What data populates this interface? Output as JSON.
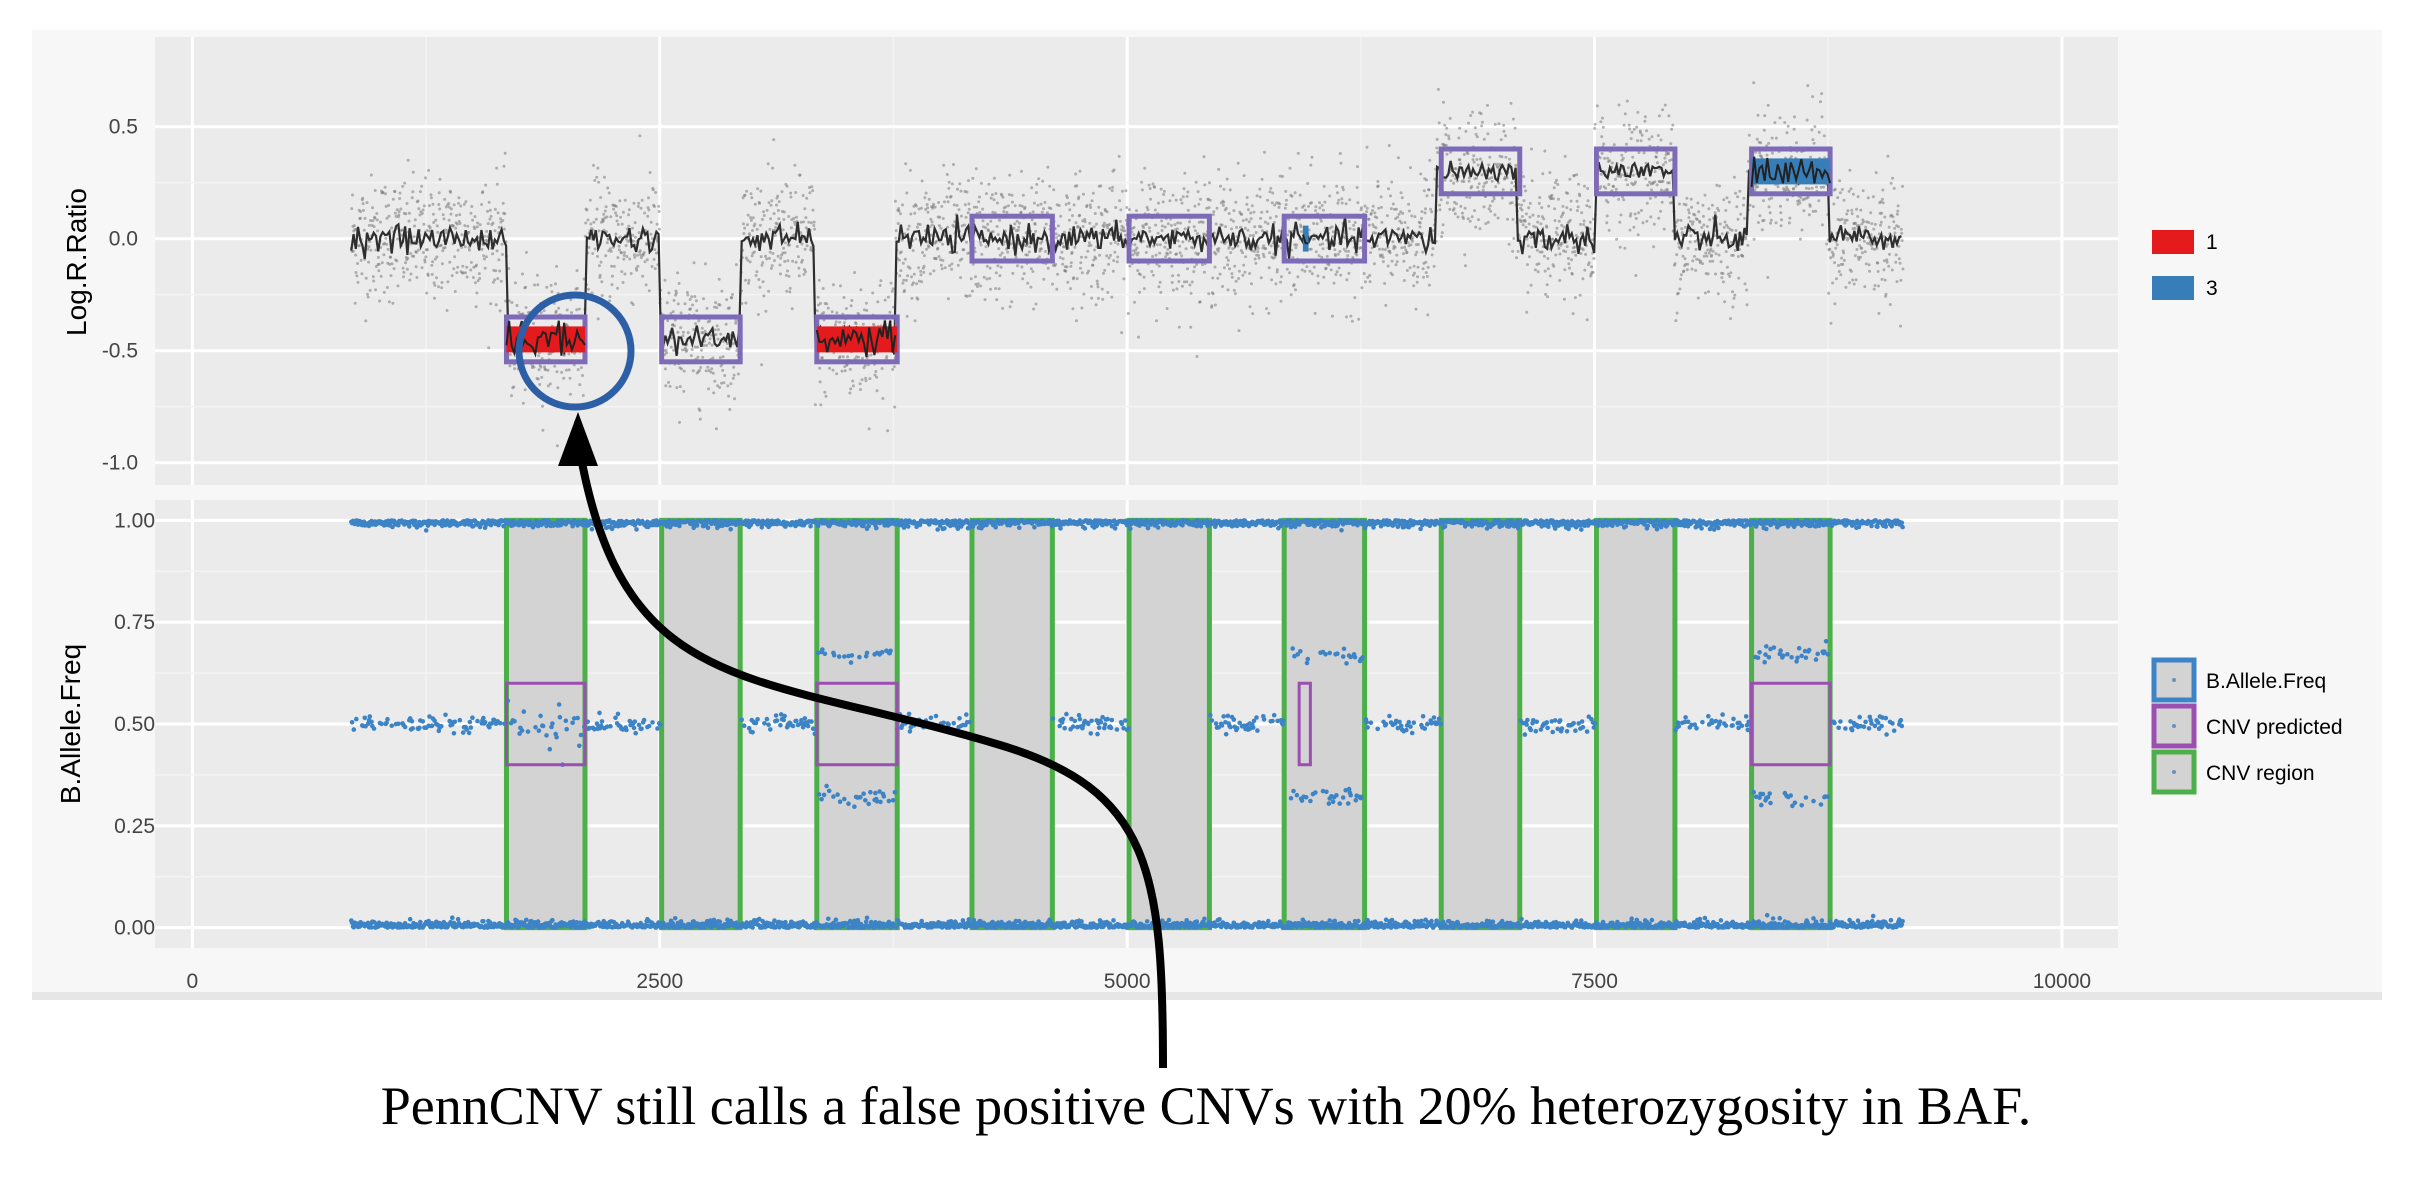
{
  "caption": "PennCNV still calls a false positive CNVs with 20% heterozygosity in BAF.",
  "colors": {
    "panel_bg": "#ebebeb",
    "grid_major": "#ffffff",
    "grid_minor": "#f3f3f3",
    "lrr_points": "#7a7a7a",
    "lrr_line": "#2e2e2e",
    "baf_points": "#3d84c6",
    "cn1": "#e41a1c",
    "cn3": "#377eb8",
    "cnv_pred_lrr": "#7e6bb8",
    "cnv_pred_baf": "#9b4fb0",
    "cnv_region": "#4daf4a",
    "region_fill": "#d3d3d3",
    "annotation": "#2d5fa6",
    "arrow": "#000000"
  },
  "chart_data": [
    {
      "type": "scatter",
      "panel": "top",
      "ylabel": "Log.R.Ratio",
      "xlim": [
        -200,
        10300
      ],
      "ylim": [
        -1.1,
        0.9
      ],
      "y_ticks": [
        "0.5",
        "0.0",
        "-0.5",
        "-1.0"
      ],
      "y_tick_values": [
        0.5,
        0.0,
        -0.5,
        -1.0
      ],
      "data_x_range": [
        850,
        9150
      ],
      "baseline_segments": [
        {
          "x0": 850,
          "x1": 1680,
          "y": 0.0
        },
        {
          "x0": 2100,
          "x1": 2500,
          "y": 0.0
        },
        {
          "x0": 2930,
          "x1": 3330,
          "y": 0.0
        },
        {
          "x0": 3760,
          "x1": 6650,
          "y": 0.0
        },
        {
          "x0": 7080,
          "x1": 7500,
          "y": 0.0
        },
        {
          "x0": 7920,
          "x1": 8320,
          "y": 0.0
        },
        {
          "x0": 8750,
          "x1": 9150,
          "y": 0.0
        }
      ],
      "shifted_segments": [
        {
          "x0": 1680,
          "x1": 2100,
          "y": -0.45
        },
        {
          "x0": 2500,
          "x1": 2930,
          "y": -0.45
        },
        {
          "x0": 3330,
          "x1": 3760,
          "y": -0.45
        },
        {
          "x0": 6650,
          "x1": 7080,
          "y": 0.3
        },
        {
          "x0": 7500,
          "x1": 7920,
          "y": 0.3
        },
        {
          "x0": 8320,
          "x1": 8750,
          "y": 0.3
        }
      ],
      "cnv_predicted_boxes": [
        {
          "x0": 1680,
          "x1": 2100,
          "y0": -0.55,
          "y1": -0.35
        },
        {
          "x0": 2510,
          "x1": 2930,
          "y0": -0.55,
          "y1": -0.35
        },
        {
          "x0": 3340,
          "x1": 3770,
          "y0": -0.55,
          "y1": -0.35
        },
        {
          "x0": 4170,
          "x1": 4600,
          "y0": -0.1,
          "y1": 0.1
        },
        {
          "x0": 5010,
          "x1": 5440,
          "y0": -0.1,
          "y1": 0.1
        },
        {
          "x0": 5840,
          "x1": 6270,
          "y0": -0.1,
          "y1": 0.1
        },
        {
          "x0": 6680,
          "x1": 7100,
          "y0": 0.2,
          "y1": 0.4
        },
        {
          "x0": 7510,
          "x1": 7930,
          "y0": 0.2,
          "y1": 0.4
        },
        {
          "x0": 8340,
          "x1": 8760,
          "y0": 0.2,
          "y1": 0.4
        }
      ],
      "cn_calls": [
        {
          "cn": "1",
          "x0": 1680,
          "x1": 2100,
          "y": -0.45
        },
        {
          "cn": "1",
          "x0": 3340,
          "x1": 3770,
          "y": -0.45
        },
        {
          "cn": "3",
          "x0": 5940,
          "x1": 5970,
          "y": 0.0
        },
        {
          "cn": "3",
          "x0": 8340,
          "x1": 8760,
          "y": 0.3
        }
      ],
      "legend": [
        {
          "label": "1",
          "color": "#e41a1c"
        },
        {
          "label": "3",
          "color": "#377eb8"
        }
      ]
    },
    {
      "type": "scatter",
      "panel": "bottom",
      "ylabel": "B.Allele.Freq",
      "xlim": [
        -200,
        10300
      ],
      "ylim": [
        -0.05,
        1.05
      ],
      "y_ticks": [
        "1.00",
        "0.75",
        "0.50",
        "0.25",
        "0.00"
      ],
      "y_tick_values": [
        1.0,
        0.75,
        0.5,
        0.25,
        0.0
      ],
      "x_ticks": [
        "0",
        "2500",
        "5000",
        "7500",
        "10000"
      ],
      "x_tick_values": [
        0,
        2500,
        5000,
        7500,
        10000
      ],
      "cnv_regions": [
        {
          "x0": 1680,
          "x1": 2100,
          "het": "mid"
        },
        {
          "x0": 2510,
          "x1": 2930,
          "het": "none"
        },
        {
          "x0": 3340,
          "x1": 3770,
          "het": "split"
        },
        {
          "x0": 4170,
          "x1": 4600,
          "het": "none"
        },
        {
          "x0": 5010,
          "x1": 5440,
          "het": "none"
        },
        {
          "x0": 5840,
          "x1": 6270,
          "het": "split"
        },
        {
          "x0": 6680,
          "x1": 7100,
          "het": "none"
        },
        {
          "x0": 7510,
          "x1": 7930,
          "het": "none"
        },
        {
          "x0": 8340,
          "x1": 8760,
          "het": "split"
        }
      ],
      "cnv_predicted_boxes": [
        {
          "x0": 1680,
          "x1": 2100,
          "y0": 0.4,
          "y1": 0.6
        },
        {
          "x0": 3340,
          "x1": 3770,
          "y0": 0.4,
          "y1": 0.6
        },
        {
          "x0": 5920,
          "x1": 5980,
          "y0": 0.4,
          "y1": 0.6
        },
        {
          "x0": 8340,
          "x1": 8760,
          "y0": 0.4,
          "y1": 0.6
        }
      ],
      "legend": [
        {
          "label": "B.Allele.Freq",
          "color": "#3d84c6"
        },
        {
          "label": "CNV predicted",
          "color": "#9b4fb0"
        },
        {
          "label": "CNV region",
          "color": "#4daf4a"
        }
      ]
    }
  ]
}
